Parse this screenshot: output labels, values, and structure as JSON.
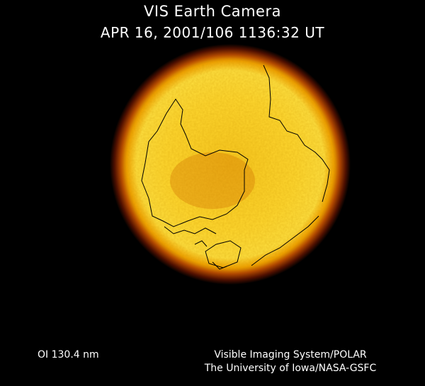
{
  "header": {
    "title": "VIS Earth Camera",
    "timestamp": "APR 16, 2001/106 1136:32 UT"
  },
  "footer": {
    "wavelength": "OI  130.4 nm",
    "instrument": "Visible Imaging System/POLAR",
    "credit": "The University of Iowa/NASA-GSFC"
  },
  "colors": {
    "disk_core": "#ffe030",
    "disk_mid": "#f0a800",
    "limb": "#c05000",
    "halo": "#501000",
    "coastline": "#000000"
  }
}
